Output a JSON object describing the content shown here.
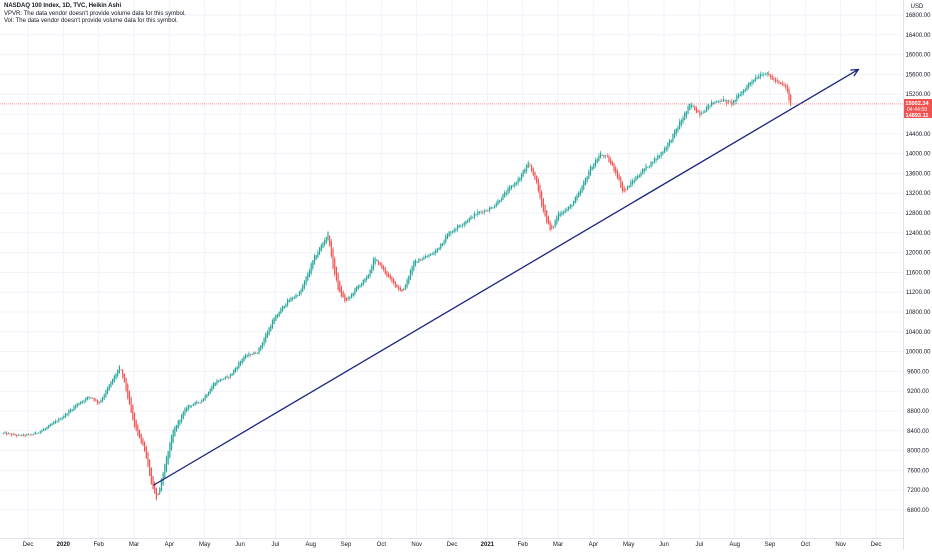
{
  "legend": {
    "title": "NASDAQ 100 Index, 1D, TVC, Heikin Ashi",
    "vpvr": "VPVR: The data vendor doesn't provide volume data for this symbol.",
    "vol": "Vol: The data vendor doesn't provide volume data for this symbol."
  },
  "chart_data": {
    "type": "candlestick",
    "candle_style": "Heikin Ashi",
    "yaxis_unit": "USD",
    "ylim": [
      6600,
      17000
    ],
    "y_ticks": [
      6800,
      7200,
      7600,
      8000,
      8400,
      8800,
      9200,
      9600,
      10000,
      10400,
      10800,
      11200,
      11600,
      12000,
      12400,
      12800,
      13200,
      13600,
      14000,
      14400,
      14800,
      15200,
      15600,
      16000,
      16400,
      16800
    ],
    "x_ticks": [
      {
        "label": "Dec",
        "t": 0
      },
      {
        "label": "2020",
        "t": 1
      },
      {
        "label": "Feb",
        "t": 2
      },
      {
        "label": "Mar",
        "t": 3
      },
      {
        "label": "Apr",
        "t": 4
      },
      {
        "label": "May",
        "t": 5
      },
      {
        "label": "Jun",
        "t": 6
      },
      {
        "label": "Jul",
        "t": 7
      },
      {
        "label": "Aug",
        "t": 8
      },
      {
        "label": "Sep",
        "t": 9
      },
      {
        "label": "Oct",
        "t": 10
      },
      {
        "label": "Nov",
        "t": 11
      },
      {
        "label": "Dec",
        "t": 12
      },
      {
        "label": "2021",
        "t": 13
      },
      {
        "label": "Feb",
        "t": 14
      },
      {
        "label": "Mar",
        "t": 15
      },
      {
        "label": "Apr",
        "t": 16
      },
      {
        "label": "May",
        "t": 17
      },
      {
        "label": "Jun",
        "t": 18
      },
      {
        "label": "Jul",
        "t": 19
      },
      {
        "label": "Aug",
        "t": 20
      },
      {
        "label": "Sep",
        "t": 21
      },
      {
        "label": "Oct",
        "t": 22
      },
      {
        "label": "Nov",
        "t": 23
      },
      {
        "label": "Dec",
        "t": 24
      }
    ],
    "last_date_t": 21.6,
    "price_path": [
      [
        -0.7,
        8350
      ],
      [
        -0.3,
        8300
      ],
      [
        0.1,
        8320
      ],
      [
        0.5,
        8450
      ],
      [
        1.0,
        8700
      ],
      [
        1.4,
        8950
      ],
      [
        1.75,
        9100
      ],
      [
        2.0,
        8950
      ],
      [
        2.2,
        9200
      ],
      [
        2.6,
        9700
      ],
      [
        2.75,
        9300
      ],
      [
        3.0,
        8500
      ],
      [
        3.3,
        8000
      ],
      [
        3.5,
        7300
      ],
      [
        3.65,
        7000
      ],
      [
        3.8,
        7500
      ],
      [
        4.1,
        8400
      ],
      [
        4.5,
        8900
      ],
      [
        4.9,
        9000
      ],
      [
        5.3,
        9400
      ],
      [
        5.7,
        9500
      ],
      [
        6.1,
        9900
      ],
      [
        6.5,
        10000
      ],
      [
        6.9,
        10600
      ],
      [
        7.3,
        11000
      ],
      [
        7.7,
        11200
      ],
      [
        8.1,
        11900
      ],
      [
        8.5,
        12400
      ],
      [
        8.6,
        11800
      ],
      [
        8.8,
        11200
      ],
      [
        9.0,
        11000
      ],
      [
        9.3,
        11300
      ],
      [
        9.6,
        11500
      ],
      [
        9.8,
        11900
      ],
      [
        10.1,
        11600
      ],
      [
        10.3,
        11400
      ],
      [
        10.6,
        11200
      ],
      [
        10.9,
        11800
      ],
      [
        11.2,
        11900
      ],
      [
        11.5,
        12000
      ],
      [
        11.9,
        12400
      ],
      [
        12.3,
        12600
      ],
      [
        12.7,
        12800
      ],
      [
        13.1,
        12900
      ],
      [
        13.5,
        13200
      ],
      [
        13.9,
        13500
      ],
      [
        14.15,
        13800
      ],
      [
        14.35,
        13500
      ],
      [
        14.6,
        12800
      ],
      [
        14.8,
        12400
      ],
      [
        15.0,
        12800
      ],
      [
        15.3,
        12900
      ],
      [
        15.6,
        13200
      ],
      [
        15.9,
        13700
      ],
      [
        16.2,
        14000
      ],
      [
        16.4,
        13900
      ],
      [
        16.65,
        13600
      ],
      [
        16.85,
        13200
      ],
      [
        17.05,
        13400
      ],
      [
        17.3,
        13600
      ],
      [
        17.6,
        13800
      ],
      [
        17.9,
        14000
      ],
      [
        18.2,
        14300
      ],
      [
        18.5,
        14700
      ],
      [
        18.75,
        15000
      ],
      [
        19.0,
        14800
      ],
      [
        19.3,
        15000
      ],
      [
        19.6,
        15100
      ],
      [
        19.9,
        15000
      ],
      [
        20.2,
        15250
      ],
      [
        20.5,
        15500
      ],
      [
        20.8,
        15650
      ],
      [
        21.0,
        15550
      ],
      [
        21.25,
        15400
      ],
      [
        21.45,
        15350
      ],
      [
        21.6,
        14900
      ]
    ],
    "trendline": {
      "start": {
        "t": 3.55,
        "price": 7300
      },
      "end": {
        "t": 23.5,
        "price": 15700
      },
      "color": "#1a237e"
    },
    "last_price": {
      "value": "15002.34",
      "countdown": "04:44:59",
      "low_label": "14893.11"
    },
    "colors": {
      "up": "#26a69a",
      "down": "#ef5350",
      "grid": "#f0f3fa",
      "axis_text": "#131722",
      "label_bg": "#ef5350"
    }
  }
}
